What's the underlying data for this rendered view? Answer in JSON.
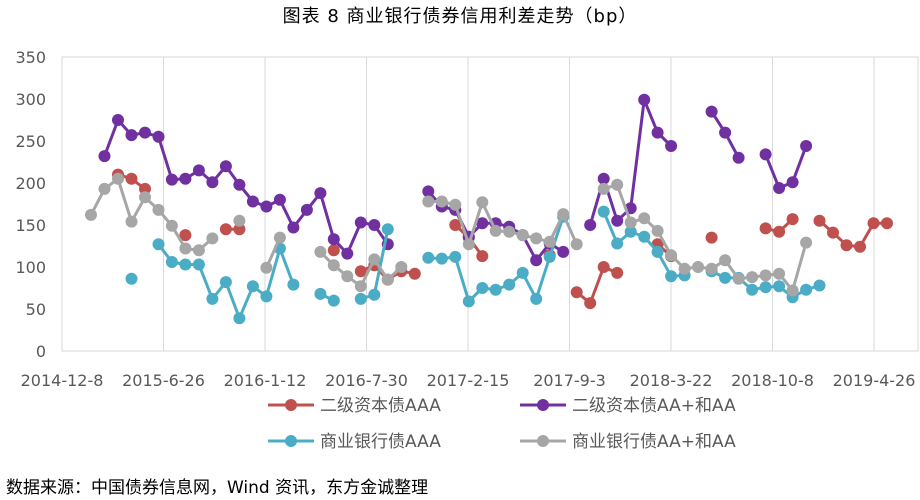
{
  "figure": {
    "title": "图表 8   商业银行债券信用利差走势（bp）",
    "source": "数据来源：中国债券信息网，Wind 资讯，东方金诚整理"
  },
  "chart_data": {
    "type": "line",
    "title": "图表 8   商业银行债券信用利差走势（bp）",
    "ylim": [
      0,
      350
    ],
    "y_ticks": [
      "0",
      "50",
      "100",
      "150",
      "200",
      "250",
      "300",
      "350"
    ],
    "x_tick_labels": [
      "2014-12-8",
      "2015-6-26",
      "2016-1-12",
      "2016-7-30",
      "2017-2-15",
      "2017-9-3",
      "2018-3-22",
      "2018-10-8",
      "2019-4-26"
    ],
    "grid": "vertical",
    "legend_position": "bottom",
    "colors": {
      "二级资本债AAA": "#c0504d",
      "二级资本债AA+和AA": "#7030a0",
      "商业银行债AAA": "#4bacc6",
      "商业银行债AA+和AA": "#a6a6a6"
    },
    "series": [
      {
        "name": "二级资本债AAA",
        "color": "#c0504d",
        "values": [
          null,
          null,
          210,
          205,
          193,
          null,
          null,
          138,
          null,
          null,
          145,
          145,
          null,
          null,
          null,
          null,
          null,
          null,
          120,
          null,
          95,
          102,
          85,
          95,
          92,
          null,
          null,
          150,
          135,
          113,
          null,
          null,
          null,
          null,
          114,
          null,
          70,
          57,
          100,
          93,
          null,
          null,
          127,
          113,
          null,
          null,
          135,
          null,
          null,
          null,
          146,
          142,
          157,
          null,
          155,
          141,
          126,
          124,
          152,
          152
        ]
      },
      {
        "name": "二级资本债AA+和AA",
        "color": "#7030a0",
        "values": [
          null,
          232,
          275,
          257,
          260,
          255,
          204,
          205,
          215,
          201,
          220,
          198,
          178,
          172,
          180,
          147,
          168,
          188,
          133,
          116,
          153,
          150,
          127,
          null,
          null,
          190,
          172,
          168,
          136,
          152,
          152,
          148,
          138,
          108,
          128,
          118,
          null,
          150,
          205,
          155,
          170,
          299,
          260,
          244,
          null,
          null,
          285,
          260,
          230,
          null,
          234,
          194,
          201,
          244
        ]
      },
      {
        "name": "商业银行债AAA",
        "color": "#4bacc6",
        "values": [
          null,
          null,
          null,
          86,
          null,
          127,
          106,
          103,
          103,
          62,
          82,
          39,
          77,
          65,
          122,
          79,
          null,
          68,
          60,
          null,
          62,
          67,
          145,
          null,
          null,
          111,
          110,
          112,
          59,
          75,
          73,
          79,
          93,
          62,
          112,
          160,
          null,
          null,
          166,
          128,
          142,
          136,
          118,
          89,
          90,
          null,
          95,
          87,
          87,
          73,
          76,
          77,
          64,
          73,
          78
        ]
      },
      {
        "name": "商业银行债AA+和AA",
        "color": "#a6a6a6",
        "values": [
          162,
          193,
          205,
          154,
          183,
          168,
          149,
          122,
          120,
          134,
          null,
          155,
          null,
          99,
          135,
          null,
          null,
          118,
          102,
          89,
          77,
          109,
          85,
          100,
          null,
          178,
          178,
          174,
          127,
          177,
          143,
          142,
          138,
          134,
          130,
          163,
          127,
          null,
          193,
          198,
          153,
          158,
          143,
          114,
          98,
          100,
          98,
          108,
          86,
          88,
          90,
          92,
          72,
          129
        ]
      }
    ],
    "legend": [
      {
        "label": "二级资本债AAA",
        "color": "#c0504d"
      },
      {
        "label": "二级资本债AA+和AA",
        "color": "#7030a0"
      },
      {
        "label": "商业银行债AAA",
        "color": "#4bacc6"
      },
      {
        "label": "商业银行债AA+和AA",
        "color": "#a6a6a6"
      }
    ]
  }
}
